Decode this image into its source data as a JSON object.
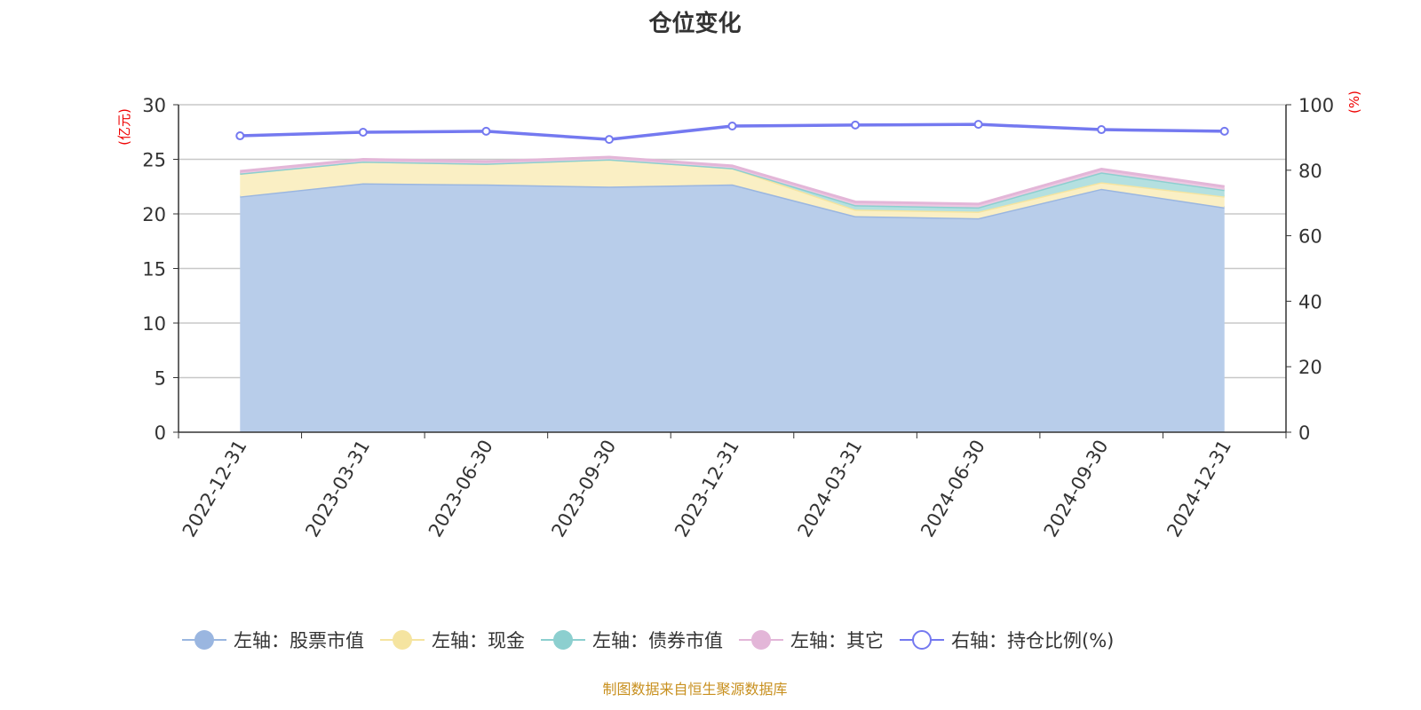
{
  "chart_data": {
    "type": "area",
    "title": "仓位变化",
    "categories": [
      "2022-12-31",
      "2023-03-31",
      "2023-06-30",
      "2023-09-30",
      "2023-12-31",
      "2024-03-31",
      "2024-06-30",
      "2024-09-30",
      "2024-12-31"
    ],
    "left_axis": {
      "label": "(亿元)",
      "ylim": [
        0,
        30
      ],
      "ticks": [
        "0",
        "5",
        "10",
        "15",
        "20",
        "25",
        "30"
      ]
    },
    "right_axis": {
      "label": "(%)",
      "ylim": [
        0,
        100
      ],
      "ticks": [
        "0",
        "20",
        "40",
        "60",
        "80",
        "100"
      ]
    },
    "stacked": true,
    "series": [
      {
        "name": "左轴：股票市值",
        "axis": "left",
        "color": "#9ab6e0",
        "fill": "#b8cdea",
        "values": [
          21.6,
          22.8,
          22.7,
          22.5,
          22.7,
          19.8,
          19.6,
          22.3,
          20.6
        ]
      },
      {
        "name": "左轴：现金",
        "axis": "left",
        "color": "#f5e4a0",
        "fill": "#faefc4",
        "values": [
          2.1,
          2.0,
          1.9,
          2.5,
          1.5,
          0.6,
          0.6,
          0.6,
          1.0
        ]
      },
      {
        "name": "左轴：债券市值",
        "axis": "left",
        "color": "#8ccfcf",
        "fill": "#b4e0e0",
        "values": [
          0,
          0,
          0,
          0,
          0,
          0.4,
          0.4,
          0.9,
          0.6
        ]
      },
      {
        "name": "左轴：其它",
        "axis": "left",
        "color": "#e3b6d8",
        "fill": "#ecc9e2",
        "values": [
          0.2,
          0.2,
          0.2,
          0.2,
          0.2,
          0.3,
          0.3,
          0.3,
          0.3
        ]
      },
      {
        "name": "右轴：持仓比例(%)",
        "axis": "right",
        "type": "line",
        "color": "#7479f0",
        "values": [
          90.5,
          91.6,
          91.9,
          89.4,
          93.5,
          93.8,
          94.0,
          92.4,
          91.9
        ]
      }
    ],
    "grid": true,
    "legend_position": "bottom"
  },
  "footer": "制图数据来自恒生聚源数据库"
}
